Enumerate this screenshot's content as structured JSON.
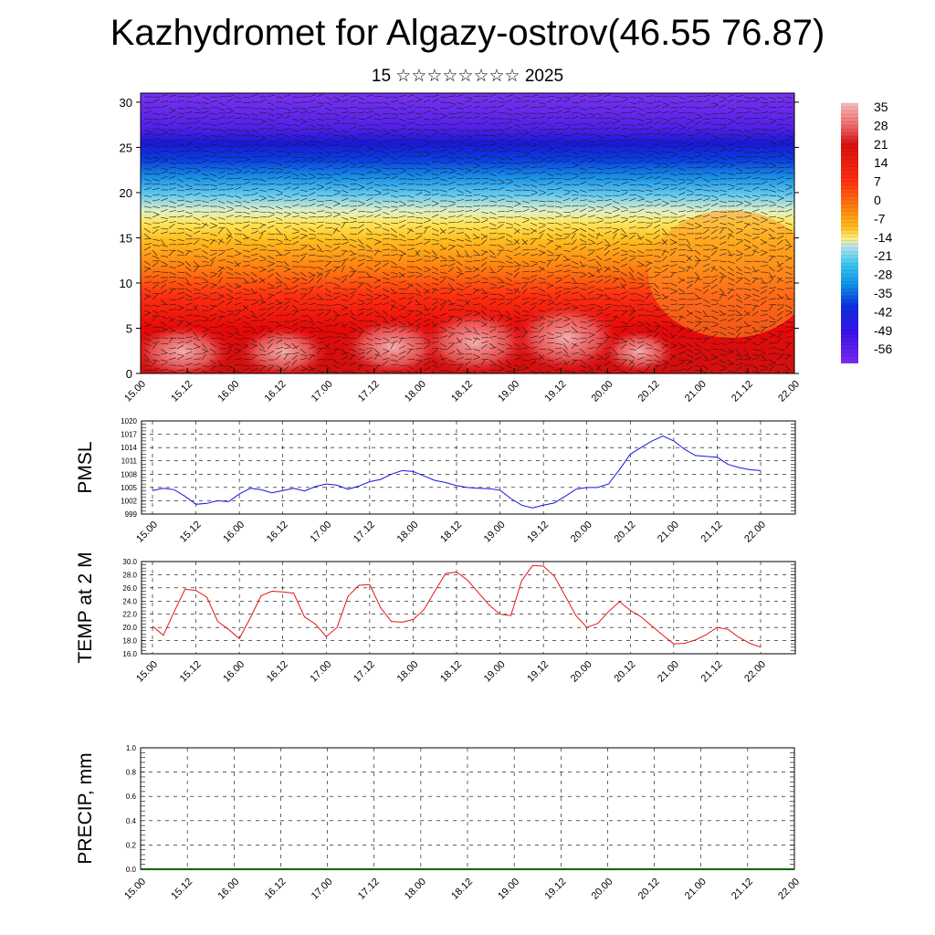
{
  "title": "Kazhydromet for Algazy-ostrov(46.55 76.87)",
  "subtitle": "15 ☆☆☆☆☆☆☆☆ 2025",
  "time_ticks": [
    "15.00",
    "15.12",
    "16.00",
    "16.12",
    "17.00",
    "17.12",
    "18.00",
    "18.12",
    "19.00",
    "19.12",
    "20.00",
    "20.12",
    "21.00",
    "21.12",
    "22.00"
  ],
  "chart_data": [
    {
      "type": "heatmap",
      "title": "",
      "x": [
        "15.00",
        "15.12",
        "16.00",
        "16.12",
        "17.00",
        "17.12",
        "18.00",
        "18.12",
        "19.00",
        "19.12",
        "20.00",
        "20.12",
        "21.00",
        "21.12",
        "22.00"
      ],
      "ylabel": "",
      "ylim": [
        0,
        31
      ],
      "yticks": [
        0,
        5,
        10,
        15,
        20,
        25,
        30
      ],
      "colorbar": {
        "labels": [
          "35",
          "28",
          "21",
          "14",
          "7",
          "0",
          "-7",
          "-14",
          "-21",
          "-28",
          "-35",
          "-42",
          "-49",
          "-56"
        ],
        "range": [
          -60,
          38
        ],
        "colors": [
          "#7a2cf0",
          "#3a10e8",
          "#0a30e0",
          "#1090e8",
          "#38c8f0",
          "#b8e4f0",
          "#fff080",
          "#ffc020",
          "#ff8010",
          "#ff3010",
          "#e80808",
          "#d81010",
          "#f07070",
          "#f4b8b8"
        ]
      },
      "vectors": true
    },
    {
      "type": "line",
      "ylabel": "PMSL",
      "ylim": [
        999,
        1020
      ],
      "yticks": [
        999,
        1002,
        1005,
        1008,
        1011,
        1014,
        1017,
        1020
      ],
      "x": [
        15.0,
        15.125,
        15.25,
        15.375,
        15.5,
        15.625,
        15.75,
        15.875,
        16.0,
        16.125,
        16.25,
        16.375,
        16.5,
        16.625,
        16.75,
        16.875,
        17.0,
        17.125,
        17.25,
        17.375,
        17.5,
        17.625,
        17.75,
        17.875,
        18.0,
        18.125,
        18.25,
        18.375,
        18.5,
        18.625,
        18.75,
        18.875,
        19.0,
        19.125,
        19.25,
        19.375,
        19.5,
        19.625,
        19.75,
        19.875,
        20.0,
        20.125,
        20.25,
        20.375,
        20.5,
        20.625,
        20.75,
        20.875,
        21.0,
        21.125,
        21.25,
        21.375,
        21.5,
        21.625,
        21.75,
        21.875,
        22.0
      ],
      "series": [
        {
          "name": "",
          "color": "#1414e6",
          "values": [
            1004.3,
            1004.8,
            1004.5,
            1003.0,
            1001.2,
            1001.4,
            1002.0,
            1001.8,
            1003.5,
            1004.8,
            1004.5,
            1003.8,
            1004.3,
            1004.8,
            1004.2,
            1005.2,
            1005.8,
            1005.5,
            1004.6,
            1005.3,
            1006.3,
            1006.8,
            1008.0,
            1008.8,
            1008.6,
            1007.6,
            1006.6,
            1006.1,
            1005.4,
            1005.0,
            1004.8,
            1004.7,
            1004.4,
            1002.5,
            1001.0,
            1000.4,
            1001.0,
            1001.5,
            1003.0,
            1004.6,
            1005.0,
            1005.0,
            1005.8,
            1009.0,
            1012.5,
            1014.0,
            1015.5,
            1016.6,
            1015.5,
            1013.6,
            1012.2,
            1012.0,
            1011.8,
            1010.2,
            1009.5,
            1009.0,
            1008.8
          ]
        }
      ]
    },
    {
      "type": "line",
      "ylabel": "TEMP at 2 M",
      "ylim": [
        16.0,
        30.0
      ],
      "yticks": [
        16.0,
        18.0,
        20.0,
        22.0,
        24.0,
        26.0,
        28.0,
        30.0
      ],
      "x": [
        15.0,
        15.125,
        15.25,
        15.375,
        15.5,
        15.625,
        15.75,
        15.875,
        16.0,
        16.125,
        16.25,
        16.375,
        16.5,
        16.625,
        16.75,
        16.875,
        17.0,
        17.125,
        17.25,
        17.375,
        17.5,
        17.625,
        17.75,
        17.875,
        18.0,
        18.125,
        18.25,
        18.375,
        18.5,
        18.625,
        18.75,
        18.875,
        19.0,
        19.125,
        19.25,
        19.375,
        19.5,
        19.625,
        19.75,
        19.875,
        20.0,
        20.125,
        20.25,
        20.375,
        20.5,
        20.625,
        20.75,
        20.875,
        21.0,
        21.125,
        21.25,
        21.375,
        21.5,
        21.625,
        21.75,
        21.875,
        22.0
      ],
      "series": [
        {
          "name": "",
          "color": "#e61414",
          "values": [
            20.2,
            18.8,
            22.4,
            25.8,
            25.6,
            24.6,
            20.9,
            19.7,
            18.3,
            21.4,
            24.8,
            25.5,
            25.4,
            25.2,
            21.6,
            20.5,
            18.6,
            20.0,
            24.7,
            26.4,
            26.5,
            23.0,
            20.9,
            20.8,
            21.2,
            22.7,
            25.5,
            28.2,
            28.4,
            27.2,
            25.3,
            23.4,
            22.0,
            21.8,
            27.1,
            29.4,
            29.3,
            27.8,
            24.8,
            21.8,
            20.0,
            20.6,
            22.4,
            23.9,
            22.6,
            21.6,
            20.2,
            18.8,
            17.5,
            17.6,
            18.1,
            18.9,
            20.0,
            19.7,
            18.5,
            17.6,
            17.0
          ]
        }
      ]
    },
    {
      "type": "bar",
      "ylabel": "PRECIP, mm",
      "ylim": [
        0.0,
        1.0
      ],
      "yticks": [
        "0.0",
        "0.2",
        "0.4",
        "0.6",
        "0.8",
        "1.0"
      ],
      "categories": [
        "15.00",
        "15.12",
        "16.00",
        "16.12",
        "17.00",
        "17.12",
        "18.00",
        "18.12",
        "19.00",
        "19.12",
        "20.00",
        "20.12",
        "21.00",
        "21.12",
        "22.00"
      ],
      "values": [
        0,
        0,
        0,
        0,
        0,
        0,
        0,
        0,
        0,
        0,
        0,
        0,
        0,
        0,
        0
      ],
      "bar_color": "#006400"
    }
  ]
}
